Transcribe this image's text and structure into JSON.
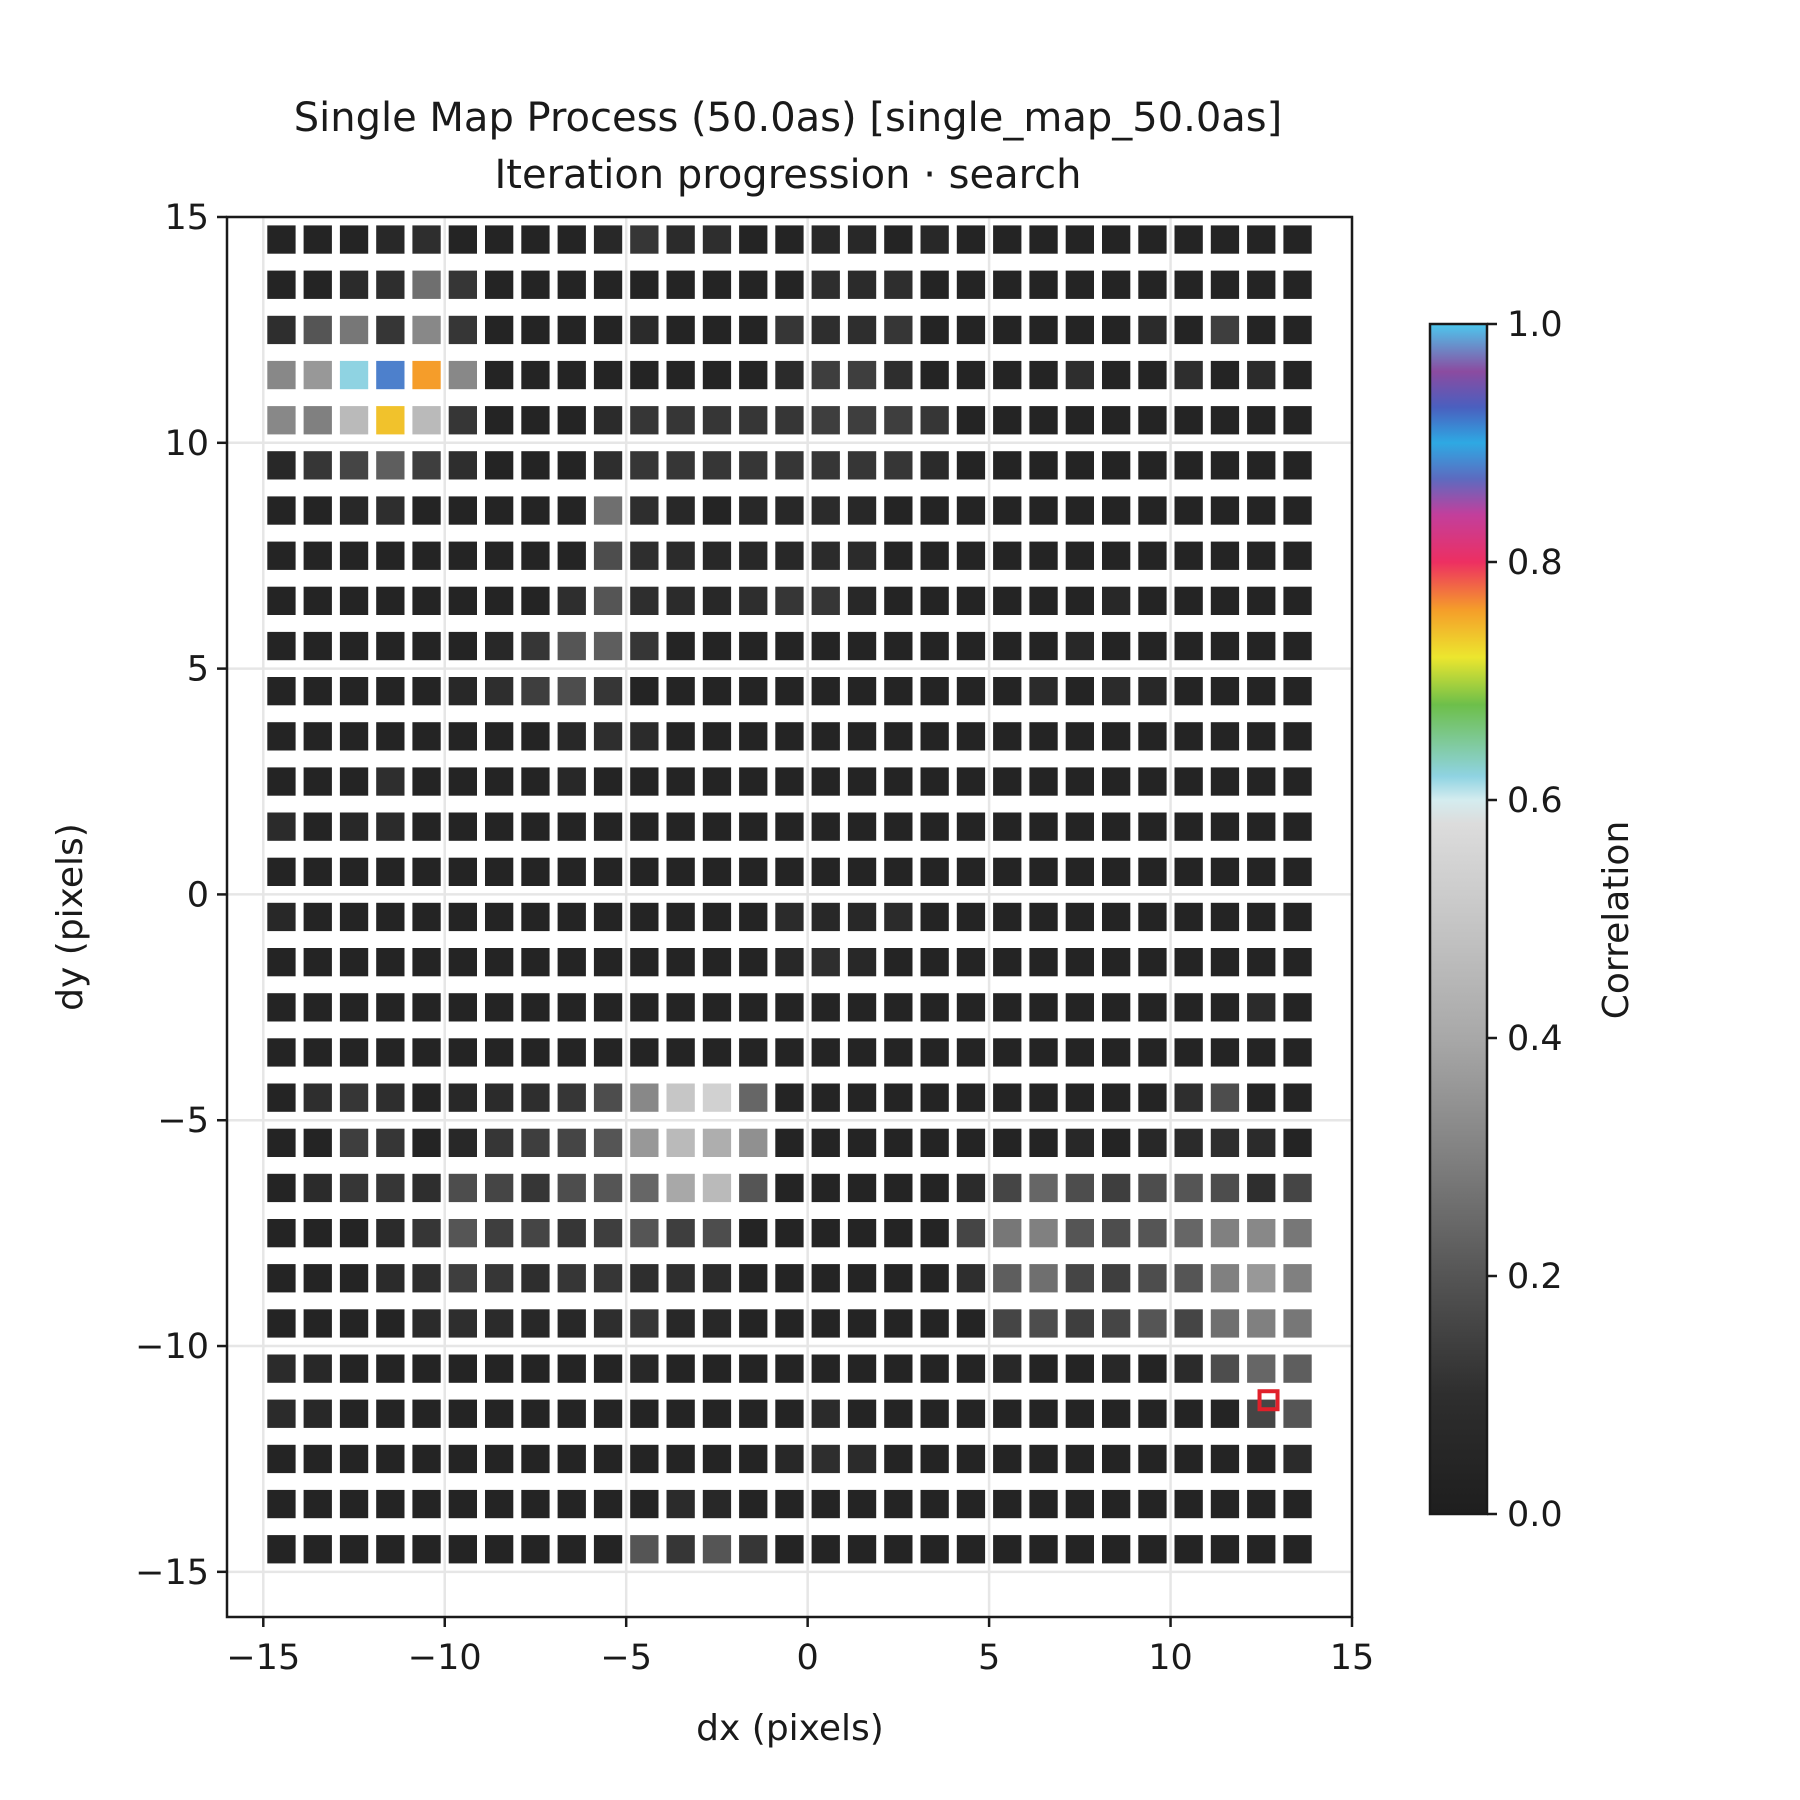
{
  "chart_data": {
    "type": "heatmap",
    "title": "Single Map Process (50.0as) [single_map_50.0as]",
    "subtitle": "Iteration progression · search",
    "xlabel": "dx (pixels)",
    "ylabel": "dy (pixels)",
    "xlim": [
      -16,
      15
    ],
    "ylim": [
      -16,
      15
    ],
    "xticks": [
      -15,
      -10,
      -5,
      0,
      5,
      10,
      15
    ],
    "yticks": [
      -15,
      -10,
      -5,
      0,
      5,
      10,
      15
    ],
    "xtick_labels": [
      "−15",
      "−10",
      "−5",
      "0",
      "5",
      "10",
      "15"
    ],
    "ytick_labels": [
      "−15",
      "−10",
      "−5",
      "0",
      "5",
      "10",
      "15"
    ],
    "grid": true,
    "x_start": -14.5,
    "y_start": -14.5,
    "step": 1,
    "colorbar": {
      "label": "Correlation",
      "range": [
        0,
        1
      ],
      "ticks": [
        "0.0",
        "0.2",
        "0.4",
        "0.6",
        "0.8",
        "1.0"
      ],
      "tick_values": [
        0,
        0.2,
        0.4,
        0.6,
        0.8,
        1.0
      ]
    },
    "colormap": [
      [
        0.0,
        "#1e1e1e"
      ],
      [
        0.1,
        "#2e2e2e"
      ],
      [
        0.2,
        "#555555"
      ],
      [
        0.3,
        "#808080"
      ],
      [
        0.4,
        "#a8a8a8"
      ],
      [
        0.5,
        "#c6c6c6"
      ],
      [
        0.58,
        "#dcdcdc"
      ],
      [
        0.6,
        "#d4ecef"
      ],
      [
        0.62,
        "#8fd3e2"
      ],
      [
        0.68,
        "#6dbf4a"
      ],
      [
        0.72,
        "#ece62e"
      ],
      [
        0.76,
        "#f59d2a"
      ],
      [
        0.8,
        "#ed2f62"
      ],
      [
        0.84,
        "#c23f9c"
      ],
      [
        0.87,
        "#5c6bc0"
      ],
      [
        0.9,
        "#2ea9e3"
      ],
      [
        0.93,
        "#4a5fbf"
      ],
      [
        0.96,
        "#8b4ba0"
      ],
      [
        1.0,
        "#4cc8ee"
      ]
    ],
    "best_marker": {
      "x": 12.7,
      "y": -11.2,
      "color": "#e0202a"
    },
    "values": [
      [
        0.04,
        0.04,
        0.04,
        0.06,
        0.1,
        0.04,
        0.04,
        0.04,
        0.04,
        0.06,
        0.12,
        0.08,
        0.1,
        0.04,
        0.04,
        0.06,
        0.06,
        0.04,
        0.06,
        0.04,
        0.04,
        0.04,
        0.04,
        0.04,
        0.04,
        0.04,
        0.04,
        0.04,
        0.04
      ],
      [
        0.04,
        0.04,
        0.08,
        0.1,
        0.26,
        0.12,
        0.04,
        0.04,
        0.04,
        0.04,
        0.04,
        0.04,
        0.04,
        0.04,
        0.04,
        0.1,
        0.08,
        0.1,
        0.04,
        0.04,
        0.04,
        0.04,
        0.04,
        0.04,
        0.04,
        0.04,
        0.04,
        0.04,
        0.04
      ],
      [
        0.1,
        0.2,
        0.28,
        0.12,
        0.32,
        0.12,
        0.04,
        0.04,
        0.04,
        0.04,
        0.08,
        0.04,
        0.04,
        0.04,
        0.12,
        0.1,
        0.1,
        0.12,
        0.04,
        0.04,
        0.04,
        0.04,
        0.04,
        0.04,
        0.08,
        0.04,
        0.14,
        0.04,
        0.04
      ],
      [
        0.32,
        0.36,
        0.62,
        0.88,
        0.76,
        0.32,
        0.04,
        0.04,
        0.04,
        0.04,
        0.04,
        0.04,
        0.04,
        0.04,
        0.08,
        0.14,
        0.14,
        0.1,
        0.04,
        0.04,
        0.04,
        0.04,
        0.1,
        0.04,
        0.04,
        0.1,
        0.04,
        0.08,
        0.04
      ],
      [
        0.32,
        0.3,
        0.46,
        0.74,
        0.46,
        0.12,
        0.04,
        0.04,
        0.04,
        0.08,
        0.12,
        0.12,
        0.12,
        0.12,
        0.12,
        0.14,
        0.14,
        0.14,
        0.12,
        0.04,
        0.04,
        0.04,
        0.04,
        0.04,
        0.04,
        0.04,
        0.04,
        0.04,
        0.04
      ],
      [
        0.06,
        0.12,
        0.16,
        0.22,
        0.14,
        0.1,
        0.04,
        0.04,
        0.04,
        0.1,
        0.12,
        0.12,
        0.12,
        0.12,
        0.12,
        0.12,
        0.12,
        0.12,
        0.08,
        0.04,
        0.04,
        0.04,
        0.04,
        0.04,
        0.04,
        0.04,
        0.04,
        0.04,
        0.04
      ],
      [
        0.04,
        0.04,
        0.06,
        0.1,
        0.04,
        0.04,
        0.04,
        0.04,
        0.04,
        0.26,
        0.1,
        0.06,
        0.04,
        0.06,
        0.06,
        0.08,
        0.06,
        0.04,
        0.04,
        0.04,
        0.04,
        0.04,
        0.04,
        0.04,
        0.04,
        0.04,
        0.04,
        0.04,
        0.04
      ],
      [
        0.04,
        0.04,
        0.04,
        0.04,
        0.04,
        0.04,
        0.04,
        0.04,
        0.04,
        0.18,
        0.1,
        0.08,
        0.06,
        0.06,
        0.06,
        0.08,
        0.08,
        0.04,
        0.04,
        0.04,
        0.04,
        0.04,
        0.04,
        0.04,
        0.04,
        0.04,
        0.04,
        0.04,
        0.04
      ],
      [
        0.04,
        0.04,
        0.04,
        0.04,
        0.04,
        0.04,
        0.04,
        0.04,
        0.1,
        0.2,
        0.1,
        0.08,
        0.06,
        0.1,
        0.12,
        0.12,
        0.06,
        0.04,
        0.04,
        0.04,
        0.04,
        0.04,
        0.04,
        0.06,
        0.04,
        0.04,
        0.04,
        0.04,
        0.04
      ],
      [
        0.04,
        0.04,
        0.04,
        0.04,
        0.04,
        0.04,
        0.06,
        0.12,
        0.2,
        0.22,
        0.12,
        0.04,
        0.04,
        0.04,
        0.04,
        0.04,
        0.04,
        0.04,
        0.04,
        0.04,
        0.04,
        0.04,
        0.06,
        0.04,
        0.04,
        0.04,
        0.04,
        0.04,
        0.04
      ],
      [
        0.04,
        0.04,
        0.04,
        0.04,
        0.04,
        0.06,
        0.1,
        0.14,
        0.18,
        0.12,
        0.04,
        0.04,
        0.04,
        0.04,
        0.04,
        0.04,
        0.04,
        0.04,
        0.04,
        0.04,
        0.04,
        0.08,
        0.04,
        0.08,
        0.06,
        0.04,
        0.04,
        0.04,
        0.04
      ],
      [
        0.04,
        0.04,
        0.04,
        0.04,
        0.04,
        0.04,
        0.04,
        0.04,
        0.06,
        0.1,
        0.08,
        0.04,
        0.04,
        0.04,
        0.04,
        0.04,
        0.04,
        0.04,
        0.04,
        0.04,
        0.04,
        0.04,
        0.04,
        0.04,
        0.04,
        0.04,
        0.04,
        0.04,
        0.04
      ],
      [
        0.04,
        0.04,
        0.04,
        0.1,
        0.04,
        0.04,
        0.04,
        0.04,
        0.06,
        0.04,
        0.04,
        0.04,
        0.04,
        0.04,
        0.04,
        0.04,
        0.04,
        0.04,
        0.04,
        0.04,
        0.04,
        0.04,
        0.04,
        0.04,
        0.04,
        0.04,
        0.04,
        0.04,
        0.04
      ],
      [
        0.08,
        0.04,
        0.06,
        0.08,
        0.04,
        0.04,
        0.04,
        0.04,
        0.04,
        0.04,
        0.04,
        0.04,
        0.04,
        0.04,
        0.04,
        0.04,
        0.04,
        0.04,
        0.04,
        0.04,
        0.04,
        0.04,
        0.04,
        0.04,
        0.04,
        0.04,
        0.04,
        0.04,
        0.04
      ],
      [
        0.04,
        0.04,
        0.04,
        0.04,
        0.04,
        0.04,
        0.04,
        0.04,
        0.04,
        0.04,
        0.04,
        0.04,
        0.04,
        0.04,
        0.04,
        0.04,
        0.04,
        0.04,
        0.04,
        0.04,
        0.04,
        0.04,
        0.04,
        0.04,
        0.04,
        0.04,
        0.04,
        0.04,
        0.04
      ],
      [
        0.06,
        0.04,
        0.04,
        0.04,
        0.04,
        0.04,
        0.04,
        0.04,
        0.04,
        0.04,
        0.04,
        0.04,
        0.04,
        0.04,
        0.08,
        0.06,
        0.06,
        0.08,
        0.04,
        0.04,
        0.04,
        0.04,
        0.04,
        0.04,
        0.04,
        0.04,
        0.04,
        0.04,
        0.04
      ],
      [
        0.04,
        0.04,
        0.04,
        0.04,
        0.04,
        0.04,
        0.04,
        0.04,
        0.04,
        0.04,
        0.04,
        0.04,
        0.04,
        0.04,
        0.06,
        0.1,
        0.06,
        0.04,
        0.04,
        0.04,
        0.04,
        0.04,
        0.04,
        0.04,
        0.04,
        0.04,
        0.04,
        0.04,
        0.04
      ],
      [
        0.04,
        0.04,
        0.04,
        0.04,
        0.04,
        0.04,
        0.04,
        0.04,
        0.04,
        0.04,
        0.04,
        0.04,
        0.04,
        0.04,
        0.04,
        0.04,
        0.04,
        0.04,
        0.04,
        0.04,
        0.04,
        0.04,
        0.04,
        0.04,
        0.04,
        0.04,
        0.04,
        0.08,
        0.04
      ],
      [
        0.04,
        0.04,
        0.04,
        0.04,
        0.04,
        0.04,
        0.04,
        0.04,
        0.04,
        0.04,
        0.04,
        0.04,
        0.04,
        0.04,
        0.04,
        0.04,
        0.04,
        0.04,
        0.04,
        0.04,
        0.04,
        0.04,
        0.04,
        0.04,
        0.04,
        0.04,
        0.04,
        0.04,
        0.04
      ],
      [
        0.04,
        0.1,
        0.12,
        0.1,
        0.04,
        0.06,
        0.08,
        0.1,
        0.12,
        0.18,
        0.32,
        0.5,
        0.54,
        0.24,
        0.04,
        0.04,
        0.04,
        0.04,
        0.04,
        0.04,
        0.04,
        0.04,
        0.04,
        0.04,
        0.04,
        0.1,
        0.18,
        0.04,
        0.04
      ],
      [
        0.04,
        0.04,
        0.14,
        0.12,
        0.04,
        0.06,
        0.12,
        0.14,
        0.16,
        0.2,
        0.36,
        0.46,
        0.42,
        0.34,
        0.04,
        0.04,
        0.04,
        0.04,
        0.04,
        0.04,
        0.04,
        0.04,
        0.06,
        0.04,
        0.06,
        0.08,
        0.1,
        0.08,
        0.04
      ],
      [
        0.04,
        0.08,
        0.12,
        0.12,
        0.1,
        0.18,
        0.16,
        0.12,
        0.18,
        0.2,
        0.24,
        0.4,
        0.46,
        0.2,
        0.04,
        0.04,
        0.04,
        0.04,
        0.04,
        0.08,
        0.16,
        0.24,
        0.18,
        0.14,
        0.18,
        0.2,
        0.18,
        0.1,
        0.16
      ],
      [
        0.04,
        0.04,
        0.04,
        0.08,
        0.12,
        0.2,
        0.14,
        0.16,
        0.12,
        0.14,
        0.2,
        0.14,
        0.18,
        0.04,
        0.04,
        0.04,
        0.04,
        0.04,
        0.04,
        0.16,
        0.28,
        0.3,
        0.2,
        0.18,
        0.2,
        0.24,
        0.3,
        0.32,
        0.28
      ],
      [
        0.04,
        0.04,
        0.04,
        0.08,
        0.1,
        0.14,
        0.12,
        0.1,
        0.12,
        0.12,
        0.1,
        0.1,
        0.08,
        0.04,
        0.04,
        0.04,
        0.04,
        0.04,
        0.04,
        0.1,
        0.22,
        0.26,
        0.16,
        0.14,
        0.18,
        0.2,
        0.3,
        0.36,
        0.3
      ],
      [
        0.04,
        0.04,
        0.04,
        0.04,
        0.08,
        0.1,
        0.08,
        0.06,
        0.06,
        0.1,
        0.12,
        0.06,
        0.06,
        0.04,
        0.04,
        0.04,
        0.04,
        0.04,
        0.04,
        0.04,
        0.16,
        0.18,
        0.14,
        0.16,
        0.2,
        0.16,
        0.26,
        0.3,
        0.28
      ],
      [
        0.08,
        0.06,
        0.04,
        0.04,
        0.04,
        0.04,
        0.04,
        0.04,
        0.04,
        0.04,
        0.06,
        0.04,
        0.04,
        0.04,
        0.04,
        0.04,
        0.04,
        0.04,
        0.04,
        0.04,
        0.06,
        0.04,
        0.04,
        0.06,
        0.04,
        0.08,
        0.18,
        0.24,
        0.22
      ],
      [
        0.08,
        0.06,
        0.04,
        0.04,
        0.04,
        0.04,
        0.04,
        0.04,
        0.04,
        0.04,
        0.04,
        0.04,
        0.04,
        0.04,
        0.04,
        0.08,
        0.04,
        0.04,
        0.04,
        0.04,
        0.04,
        0.04,
        0.04,
        0.04,
        0.04,
        0.04,
        0.04,
        0.16,
        0.2
      ],
      [
        0.04,
        0.04,
        0.04,
        0.04,
        0.04,
        0.04,
        0.04,
        0.04,
        0.04,
        0.04,
        0.04,
        0.04,
        0.04,
        0.04,
        0.06,
        0.1,
        0.08,
        0.04,
        0.04,
        0.04,
        0.04,
        0.04,
        0.04,
        0.04,
        0.04,
        0.04,
        0.04,
        0.04,
        0.08
      ],
      [
        0.04,
        0.04,
        0.04,
        0.04,
        0.04,
        0.04,
        0.04,
        0.04,
        0.04,
        0.04,
        0.04,
        0.08,
        0.06,
        0.04,
        0.04,
        0.04,
        0.04,
        0.04,
        0.04,
        0.04,
        0.04,
        0.04,
        0.04,
        0.04,
        0.04,
        0.04,
        0.04,
        0.04,
        0.04
      ],
      [
        0.04,
        0.04,
        0.04,
        0.04,
        0.04,
        0.04,
        0.04,
        0.04,
        0.04,
        0.04,
        0.2,
        0.12,
        0.2,
        0.12,
        0.04,
        0.04,
        0.04,
        0.04,
        0.04,
        0.04,
        0.04,
        0.04,
        0.04,
        0.04,
        0.04,
        0.04,
        0.04,
        0.04,
        0.04
      ]
    ]
  }
}
